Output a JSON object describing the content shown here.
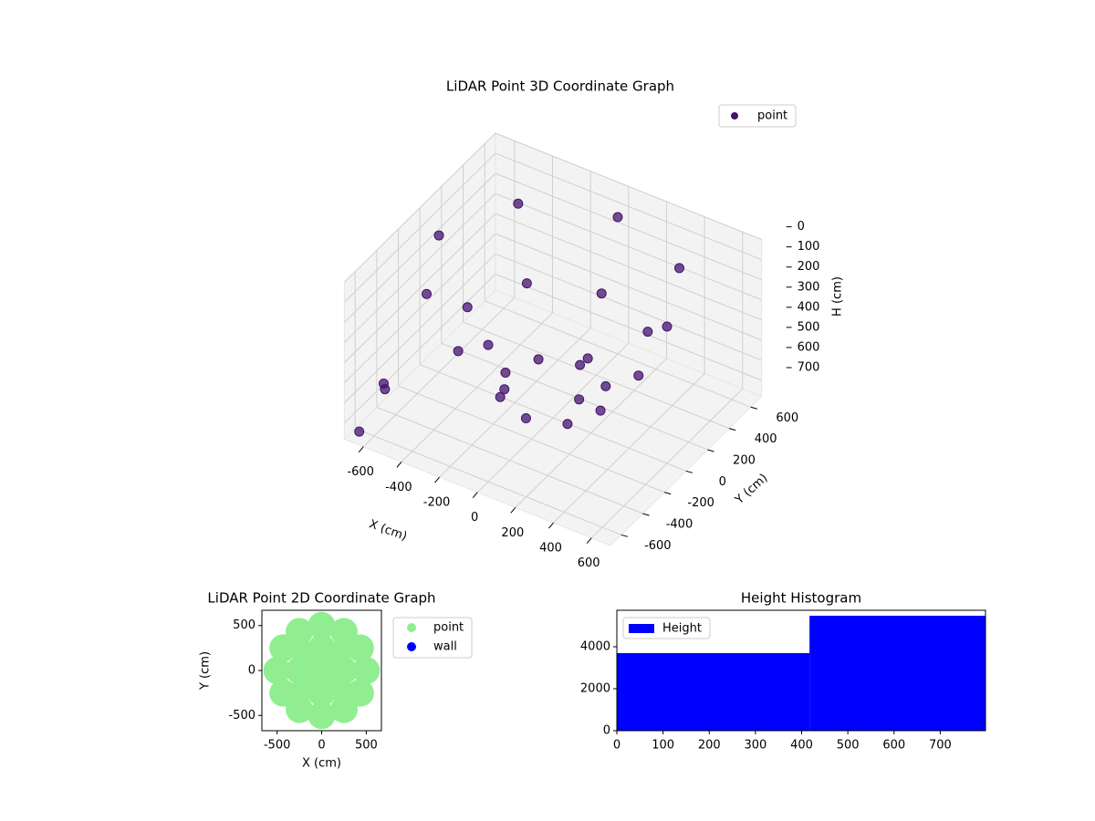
{
  "chart_data": [
    {
      "type": "scatter3d",
      "title": "LiDAR Point 3D Coordinate Graph",
      "xlabel": "X (cm)",
      "ylabel": "Y (cm)",
      "zlabel": "H (cm)",
      "xlim": [
        -700,
        700
      ],
      "ylim": [
        -700,
        700
      ],
      "zlim": [
        780,
        0
      ],
      "xticks": [
        -600,
        -400,
        -200,
        0,
        200,
        400,
        600
      ],
      "yticks": [
        -600,
        -400,
        -200,
        0,
        200,
        400,
        600
      ],
      "zticks": [
        0,
        100,
        200,
        300,
        400,
        500,
        600,
        700
      ],
      "grid": true,
      "legend": "upper right",
      "series": [
        {
          "name": "point",
          "color": "#45136f",
          "x": [
            600,
            424,
            0,
            -424,
            -600,
            -424,
            0,
            424,
            450,
            318,
            0,
            -318,
            -450,
            -318,
            0,
            318,
            250,
            177,
            0,
            -177,
            -250,
            -177,
            0,
            177,
            -650,
            -600,
            -550
          ],
          "y": [
            0,
            424,
            600,
            424,
            0,
            -424,
            -600,
            -424,
            0,
            318,
            450,
            318,
            0,
            -318,
            -450,
            -318,
            0,
            177,
            250,
            177,
            0,
            -177,
            -250,
            -177,
            -650,
            -500,
            -600
          ],
          "z": [
            100,
            100,
            100,
            100,
            100,
            100,
            100,
            100,
            400,
            400,
            400,
            400,
            400,
            400,
            400,
            400,
            650,
            650,
            650,
            650,
            650,
            650,
            650,
            650,
            750,
            600,
            500
          ]
        }
      ]
    },
    {
      "type": "scatter",
      "title": "LiDAR Point 2D Coordinate Graph",
      "xlabel": "X (cm)",
      "ylabel": "Y (cm)",
      "xlim": [
        -670,
        670
      ],
      "ylim": [
        -670,
        670
      ],
      "xticks": [
        -500,
        0,
        500
      ],
      "yticks": [
        -500,
        0,
        500
      ],
      "legend": "outside right",
      "series": [
        {
          "name": "point",
          "color": "#90ee90",
          "x": [
            0,
            250,
            177,
            0,
            -177,
            -250,
            -177,
            0,
            177,
            500,
            433,
            250,
            0,
            -250,
            -433,
            -500,
            -433,
            -250,
            0,
            250,
            433
          ],
          "y": [
            0,
            0,
            177,
            250,
            177,
            0,
            -177,
            -250,
            -177,
            0,
            250,
            433,
            500,
            433,
            250,
            0,
            -250,
            -433,
            -500,
            -433,
            -250
          ]
        },
        {
          "name": "wall",
          "color": "#0000ff",
          "x": [],
          "y": []
        }
      ]
    },
    {
      "type": "histogram",
      "title": "Height Histogram",
      "name": "Height",
      "color": "#0000ff",
      "bins": [
        0,
        417,
        798
      ],
      "values": [
        3700,
        5480
      ],
      "xlim": [
        0,
        798
      ],
      "ylim": [
        0,
        5740
      ],
      "xticks": [
        0,
        100,
        200,
        300,
        400,
        500,
        600,
        700
      ],
      "yticks": [
        0,
        2000,
        4000
      ],
      "legend": "upper left"
    }
  ]
}
